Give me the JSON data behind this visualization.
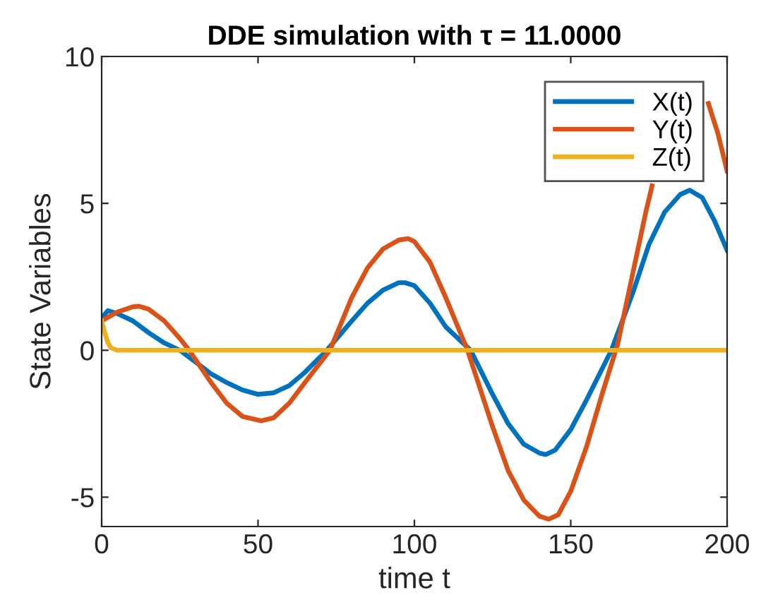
{
  "chart_data": {
    "type": "line",
    "title": "DDE simulation with τ = 11.0000",
    "xlabel": "time t",
    "ylabel": "State Variables",
    "xlim": [
      0,
      200
    ],
    "ylim": [
      -6,
      10
    ],
    "xticks": [
      0,
      50,
      100,
      150,
      200
    ],
    "yticks": [
      -5,
      0,
      5,
      10
    ],
    "grid": false,
    "legend": "top right",
    "marker": "none",
    "line_style": "solid",
    "series": [
      {
        "name": "X(t)",
        "color": "#0072bd",
        "x": [
          0,
          2,
          5,
          10,
          15,
          20,
          25,
          30,
          35,
          40,
          45,
          50,
          55,
          60,
          65,
          72,
          80,
          85,
          90,
          95,
          97,
          100,
          105,
          110,
          118,
          125,
          130,
          135,
          140,
          142,
          145,
          150,
          155,
          163,
          170,
          175,
          180,
          185,
          188,
          192,
          196,
          200
        ],
        "values": [
          1.1,
          1.35,
          1.25,
          1.0,
          0.6,
          0.25,
          0.0,
          -0.4,
          -0.8,
          -1.1,
          -1.35,
          -1.5,
          -1.45,
          -1.2,
          -0.75,
          0.0,
          1.0,
          1.6,
          2.05,
          2.3,
          2.3,
          2.2,
          1.6,
          0.8,
          0.0,
          -1.5,
          -2.5,
          -3.2,
          -3.5,
          -3.55,
          -3.4,
          -2.7,
          -1.7,
          0.0,
          2.0,
          3.6,
          4.7,
          5.3,
          5.45,
          5.2,
          4.4,
          3.4
        ]
      },
      {
        "name": "Y(t)",
        "color": "#d95319",
        "x": [
          0,
          5,
          10,
          12,
          15,
          20,
          25,
          28,
          35,
          40,
          45,
          51,
          55,
          60,
          65,
          73,
          80,
          85,
          90,
          95,
          98,
          100,
          105,
          110,
          117,
          125,
          130,
          135,
          140,
          143,
          146,
          150,
          155,
          160,
          165,
          170,
          174,
          176,
          184,
          194,
          197,
          200
        ],
        "values": [
          1.0,
          1.3,
          1.48,
          1.5,
          1.4,
          1.0,
          0.4,
          0.0,
          -1.1,
          -1.8,
          -2.25,
          -2.4,
          -2.3,
          -1.8,
          -1.1,
          0.0,
          1.8,
          2.8,
          3.45,
          3.75,
          3.8,
          3.7,
          3.0,
          1.8,
          0.0,
          -2.6,
          -4.1,
          -5.1,
          -5.65,
          -5.75,
          -5.6,
          -4.8,
          -3.3,
          -1.5,
          0.2,
          2.7,
          4.7,
          5.6,
          null,
          8.4,
          7.4,
          6.1
        ]
      },
      {
        "name": "Z(t)",
        "color": "#edb120",
        "x": [
          0,
          1,
          2,
          3,
          5,
          200
        ],
        "values": [
          1.0,
          0.6,
          0.25,
          0.08,
          0.0,
          0.0
        ]
      }
    ]
  }
}
